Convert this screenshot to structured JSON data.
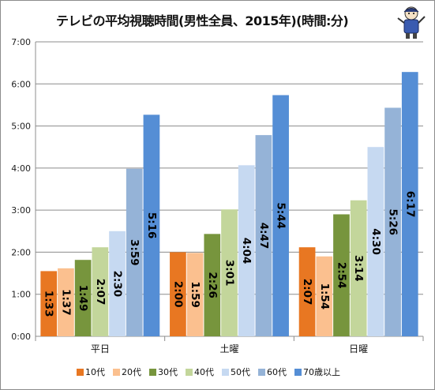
{
  "chart_data": {
    "type": "bar",
    "title": "テレビの平均視聴時間(男性全員、2015年)(時間:分)",
    "categories": [
      "平日",
      "土曜",
      "日曜"
    ],
    "y_ticks": [
      "0:00",
      "1:00",
      "2:00",
      "3:00",
      "4:00",
      "5:00",
      "6:00",
      "7:00"
    ],
    "ylim_minutes": [
      0,
      420
    ],
    "grid": true,
    "legend_position": "bottom",
    "series": [
      {
        "name": "10代",
        "color": "#e87722",
        "values_minutes": [
          93,
          120,
          127
        ],
        "labels": [
          "1:33",
          "2:00",
          "2:07"
        ]
      },
      {
        "name": "20代",
        "color": "#fbc08f",
        "values_minutes": [
          97,
          119,
          114
        ],
        "labels": [
          "1:37",
          "1:59",
          "1:54"
        ]
      },
      {
        "name": "30代",
        "color": "#77953d",
        "values_minutes": [
          109,
          146,
          174
        ],
        "labels": [
          "1:49",
          "2:26",
          "2:54"
        ]
      },
      {
        "name": "40代",
        "color": "#c3d69b",
        "values_minutes": [
          127,
          181,
          194
        ],
        "labels": [
          "2:07",
          "3:01",
          "3:14"
        ]
      },
      {
        "name": "50代",
        "color": "#c6d9f1",
        "values_minutes": [
          150,
          244,
          270
        ],
        "labels": [
          "2:30",
          "4:04",
          "4:30"
        ]
      },
      {
        "name": "60代",
        "color": "#95b3d7",
        "values_minutes": [
          239,
          287,
          326
        ],
        "labels": [
          "3:59",
          "4:47",
          "5:26"
        ]
      },
      {
        "name": "70歳以上",
        "color": "#558ed5",
        "values_minutes": [
          316,
          344,
          377
        ],
        "labels": [
          "5:16",
          "5:44",
          "6:17"
        ]
      }
    ]
  }
}
